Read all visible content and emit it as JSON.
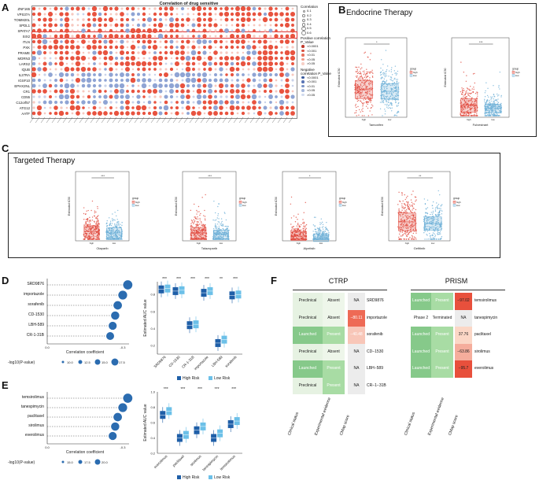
{
  "panels": {
    "a": "A",
    "b": "B",
    "c": "C",
    "d": "D",
    "e": "E",
    "f": "F"
  },
  "panel_a": {
    "title": "Correlation of drug sensitive",
    "genes": [
      "ZNF165",
      "VPS37A",
      "TOMM20L",
      "SPDL1",
      "SPATA7",
      "SIX2",
      "ITLN",
      "PXK",
      "PRAME",
      "MORN3",
      "LARS2",
      "IQUB",
      "IL27RA",
      "IGSF10",
      "EPHX2NL",
      "CR1",
      "CD55",
      "C12orf57",
      "ATG12",
      "AATF"
    ],
    "legend": {
      "corr_title": "Correlation",
      "corr_vals": [
        "0.1",
        "0.2",
        "0.3",
        "0.4",
        "0.5",
        "0.6"
      ],
      "pos_title": "Positive correlation P_Value",
      "pos_vals": [
        "<0.0001",
        "<0.001",
        "<0.01",
        "<0.05",
        ">0.05"
      ],
      "neg_title": "Negative correlation P_Value",
      "neg_vals": [
        "<0.0001",
        "<0.001",
        "<0.01",
        "<0.05",
        ">0.05"
      ]
    }
  },
  "panel_b": {
    "title": "Endocrine Therapy",
    "plot1": {
      "xlabel": "Tamoxifen",
      "ylabel": "Estimated IC50",
      "sig": "*",
      "groups": [
        "high",
        "low"
      ]
    },
    "plot2": {
      "xlabel": "Fulvestrant",
      "ylabel": "Estimated IC50",
      "sig": "***",
      "groups": [
        "high",
        "low"
      ]
    },
    "legend_title": "group",
    "legend_items": [
      "high",
      "low"
    ]
  },
  "panel_c": {
    "title": "Targeted Therapy",
    "plots": [
      {
        "xlabel": "Olaparib",
        "sig": "***"
      },
      {
        "xlabel": "Talazoparib",
        "sig": "***"
      },
      {
        "xlabel": "Alpelisib",
        "sig": "*"
      },
      {
        "xlabel": "Gefitinib",
        "sig": "**"
      }
    ],
    "ylabel": "Estimated IC50",
    "legend_title": "group",
    "legend_items": [
      "high",
      "low"
    ]
  },
  "panel_d": {
    "drugs": [
      "SRD9876",
      "importazole",
      "sorafenib",
      "CD-1530",
      "LBH-589",
      "CR-1-31B"
    ],
    "dot_values": [
      -0.32,
      -0.3,
      -0.28,
      -0.27,
      -0.26,
      -0.25
    ],
    "xlabel": "Correlation coefficient",
    "xticks": [
      "0.0",
      "-0.3"
    ],
    "size_label": "-log10(P-value)",
    "size_vals": [
      "10.0",
      "12.5",
      "15.0",
      "17.5"
    ],
    "box_ylabel": "Estimated AUC value",
    "box_sigs": [
      "***",
      "***",
      "***",
      "***",
      "**",
      "***"
    ],
    "box_cats": [
      "SRD9876",
      "CD-1530",
      "CR-1-31B",
      "importazole",
      "LBH-589",
      "sorafenib"
    ],
    "box_yticks": [
      "0.2",
      "0.4",
      "0.6",
      "0.8"
    ],
    "legend": [
      "High Risk",
      "Low Risk"
    ]
  },
  "panel_e": {
    "drugs": [
      "temsirolimus",
      "tanespimycin",
      "paclitaxel",
      "sirolimus",
      "everolimus"
    ],
    "dot_values": [
      -0.32,
      -0.3,
      -0.28,
      -0.27,
      -0.26
    ],
    "xlabel": "Correlation coefficient",
    "xticks": [
      "0.0",
      "-0.3"
    ],
    "size_label": "-log10(P-value)",
    "size_vals": [
      "15.0",
      "17.5",
      "20.0"
    ],
    "box_ylabel": "Estimated AUC value",
    "box_sigs": [
      "***",
      "***",
      "***",
      "***",
      "***"
    ],
    "box_cats": [
      "everolimus",
      "paclitaxel",
      "sirolimus",
      "tanespimycin",
      "temsirolimus"
    ],
    "box_yticks": [
      "0.2",
      "0.4",
      "0.6",
      "0.8",
      "1.0"
    ],
    "legend": [
      "High Risk",
      "Low Risk"
    ]
  },
  "panel_f": {
    "ctrp_title": "CTRP",
    "prism_title": "PRISM",
    "ctrp_rows": [
      [
        "Preclinical",
        "Absent",
        "NA",
        "SRD9876"
      ],
      [
        "Preclinical",
        "Absent",
        "−80.11",
        "importazole"
      ],
      [
        "Launched",
        "Present",
        "−40.48",
        "sorafenib"
      ],
      [
        "Preclinical",
        "Absent",
        "NA",
        "CD−1530"
      ],
      [
        "Launched",
        "Present",
        "NA",
        "LBH−589"
      ],
      [
        "Preclinical",
        "Present",
        "NA",
        "CR−1−31B"
      ]
    ],
    "prism_rows": [
      [
        "Launched",
        "Present",
        "−97.02",
        "temsirolimus"
      ],
      [
        "Phase 2",
        "Terminated",
        "NA",
        "tanespimycin"
      ],
      [
        "Launched",
        "Present",
        "37.76",
        "paclitaxel"
      ],
      [
        "Launched",
        "Present",
        "−63.86",
        "sirolimus"
      ],
      [
        "Launched",
        "Present",
        "−95.7",
        "everolimus"
      ]
    ],
    "col_labels": [
      "Clinical status",
      "Experimental evidence",
      "CMap score"
    ]
  }
}
